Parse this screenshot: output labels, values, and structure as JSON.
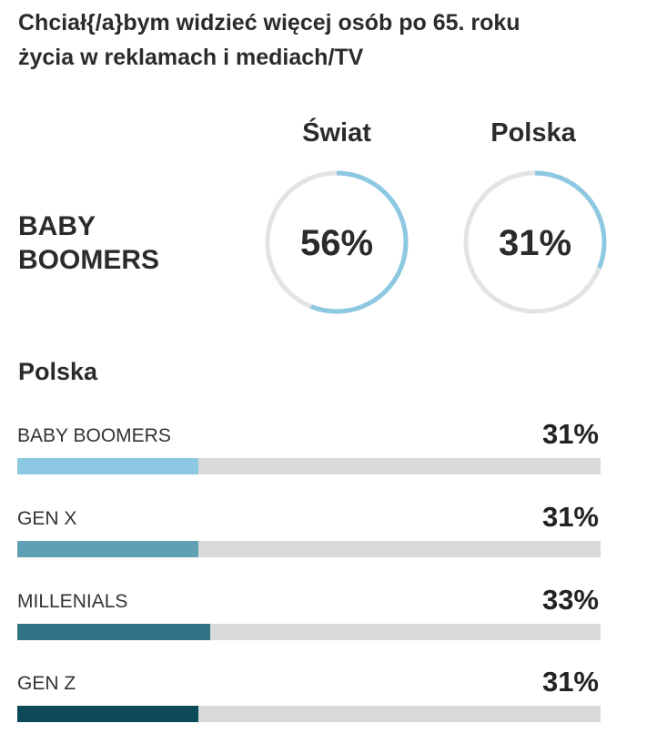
{
  "title_line1": "Chciał{/a}bym widzieć więcej osób po 65. roku",
  "title_line2": "życia w reklamach i mediach/TV",
  "donut_section": {
    "row_label_line1": "BABY",
    "row_label_line2": "BOOMERS",
    "columns": [
      {
        "header": "Świat",
        "value_text": "56%",
        "value": 56
      },
      {
        "header": "Polska",
        "value_text": "31%",
        "value": 31
      }
    ],
    "ring_color": "#8dc8e2",
    "track_color": "#e3e3e3"
  },
  "bar_section": {
    "title": "Polska"
  },
  "chart_data": [
    {
      "type": "pie",
      "categories": [
        "Świat",
        "Polska"
      ],
      "values": [
        56,
        31
      ],
      "unit": "%",
      "series": [
        {
          "name": "BABY BOOMERS",
          "values": [
            56,
            31
          ]
        }
      ]
    },
    {
      "type": "bar",
      "orientation": "horizontal",
      "title": "Polska",
      "categories": [
        "BABY BOOMERS",
        "GEN X",
        "MILLENIALS",
        "GEN Z"
      ],
      "values": [
        31,
        31,
        33,
        31
      ],
      "value_labels": [
        "31%",
        "31%",
        "33%",
        "31%"
      ],
      "colors": [
        "#8dc8e2",
        "#5fa0b5",
        "#2f7385",
        "#0c4a59"
      ],
      "track_color": "#d9d9d9",
      "xlim": [
        0,
        100
      ],
      "grid": false
    }
  ]
}
